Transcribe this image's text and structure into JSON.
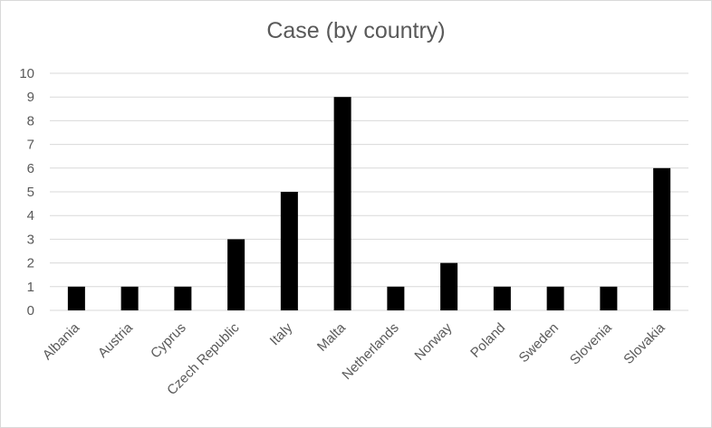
{
  "chart_data": {
    "type": "bar",
    "title": "Case (by country)",
    "categories": [
      "Albania",
      "Austria",
      "Cyprus",
      "Czech Republic",
      "Italy",
      "Malta",
      "Netherlands",
      "Norway",
      "Poland",
      "Sweden",
      "Slovenia",
      "Slovakia"
    ],
    "values": [
      1,
      1,
      1,
      3,
      5,
      9,
      1,
      2,
      1,
      1,
      1,
      6
    ],
    "ylim": [
      0,
      10
    ],
    "yticks": [
      0,
      1,
      2,
      3,
      4,
      5,
      6,
      7,
      8,
      9,
      10
    ],
    "grid": true,
    "legend": "none",
    "colors": {
      "bar": "#000000",
      "grid": "#d9d9d9",
      "text": "#595959"
    }
  }
}
